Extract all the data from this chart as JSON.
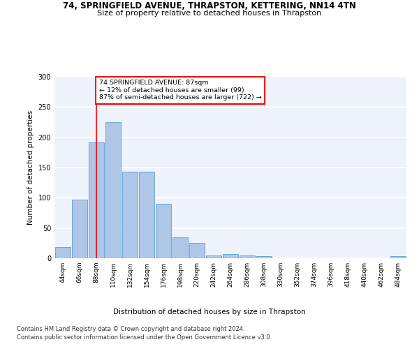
{
  "title": "74, SPRINGFIELD AVENUE, THRAPSTON, KETTERING, NN14 4TN",
  "subtitle": "Size of property relative to detached houses in Thrapston",
  "xlabel": "Distribution of detached houses by size in Thrapston",
  "ylabel": "Number of detached properties",
  "bar_color": "#aec6e8",
  "bar_edgecolor": "#5a9fd4",
  "background_color": "#eef2fa",
  "categories": [
    "44sqm",
    "66sqm",
    "88sqm",
    "110sqm",
    "132sqm",
    "154sqm",
    "176sqm",
    "198sqm",
    "220sqm",
    "242sqm",
    "264sqm",
    "286sqm",
    "308sqm",
    "330sqm",
    "352sqm",
    "374sqm",
    "396sqm",
    "418sqm",
    "440sqm",
    "462sqm",
    "484sqm"
  ],
  "values": [
    18,
    97,
    192,
    225,
    143,
    143,
    90,
    35,
    25,
    5,
    7,
    5,
    3,
    0,
    0,
    0,
    0,
    0,
    0,
    0,
    3
  ],
  "annotation_text": "74 SPRINGFIELD AVENUE: 87sqm\n← 12% of detached houses are smaller (99)\n87% of semi-detached houses are larger (722) →",
  "annotation_box_color": "white",
  "annotation_box_edgecolor": "red",
  "vline_color": "red",
  "vline_index": 2,
  "ylim": [
    0,
    300
  ],
  "yticks": [
    0,
    50,
    100,
    150,
    200,
    250,
    300
  ],
  "footer_line1": "Contains HM Land Registry data © Crown copyright and database right 2024.",
  "footer_line2": "Contains public sector information licensed under the Open Government Licence v3.0."
}
